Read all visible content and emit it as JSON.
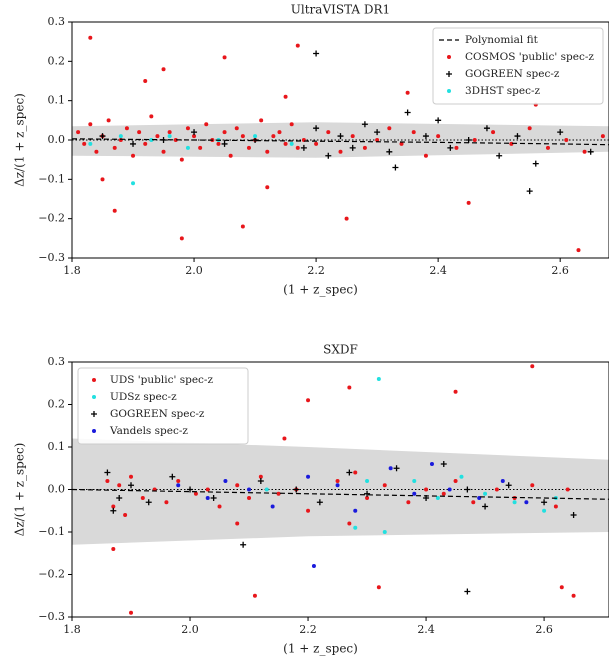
{
  "chart_data": [
    {
      "type": "scatter",
      "title": "UltraVISTA DR1",
      "x_label": "(1 + z_spec)",
      "y_label": "Δz/(1 + z_spec)",
      "xlim": [
        1.8,
        2.68
      ],
      "ylim": [
        -0.3,
        0.3
      ],
      "xticks": [
        1.8,
        {
          "value": 2.0,
          "label": "2.0"
        },
        2.2,
        2.4,
        2.6
      ],
      "yticks": [
        {
          "value": -0.3,
          "label": "−0.3"
        },
        {
          "value": -0.2,
          "label": "−0.2"
        },
        {
          "value": -0.1,
          "label": "−0.1"
        },
        {
          "value": 0,
          "label": "0.0"
        },
        0.1,
        0.2,
        0.3
      ],
      "legend": "upper right",
      "band": {
        "color": "#d9d9d9",
        "x": [
          1.8,
          2.2,
          2.68
        ],
        "upper": [
          0.035,
          0.045,
          0.035
        ],
        "lower": [
          -0.04,
          -0.045,
          -0.03
        ]
      },
      "fit": {
        "name": "Polynomial fit",
        "color": "#000000",
        "x": [
          1.8,
          2.0,
          2.2,
          2.4,
          2.6,
          2.68
        ],
        "y": [
          0.003,
          0,
          -0.003,
          -0.006,
          -0.01,
          -0.012
        ]
      },
      "series": [
        {
          "name": "COSMOS 'public' spec-z",
          "color": "#e8161b",
          "marker": "o",
          "x": [
            1.81,
            1.82,
            1.83,
            1.84,
            1.85,
            1.86,
            1.87,
            1.88,
            1.89,
            1.9,
            1.91,
            1.92,
            1.93,
            1.94,
            1.95,
            1.96,
            1.97,
            1.98,
            1.99,
            2.0,
            2.01,
            2.02,
            2.03,
            2.04,
            2.05,
            2.06,
            2.07,
            2.08,
            2.09,
            2.1,
            2.11,
            2.12,
            2.13,
            2.14,
            2.15,
            2.16,
            2.17,
            2.18,
            2.2,
            2.22,
            2.24,
            2.26,
            2.28,
            2.3,
            2.32,
            2.34,
            2.36,
            2.38,
            2.4,
            2.43,
            2.46,
            2.49,
            2.52,
            2.55,
            2.58,
            2.61,
            2.64,
            2.67,
            1.83,
            1.87,
            1.92,
            1.98,
            2.05,
            2.12,
            2.17,
            2.25,
            2.35,
            2.45,
            2.56,
            2.63,
            1.85,
            1.95,
            2.08,
            2.15
          ],
          "y": [
            0.02,
            -0.01,
            0.04,
            -0.03,
            0.01,
            0.05,
            -0.02,
            0,
            0.03,
            -0.04,
            0.02,
            -0.01,
            0.06,
            0.01,
            -0.03,
            0.02,
            0,
            -0.05,
            0.03,
            0.01,
            -0.02,
            0.04,
            0,
            -0.01,
            0.02,
            -0.04,
            0.03,
            0.01,
            -0.02,
            0,
            0.05,
            -0.03,
            0.01,
            0.02,
            -0.01,
            0.04,
            -0.02,
            0,
            -0.01,
            0.02,
            -0.03,
            0.01,
            -0.02,
            0,
            0.03,
            -0.01,
            0.02,
            -0.04,
            0.01,
            -0.02,
            0,
            0.02,
            -0.01,
            0.03,
            -0.02,
            0,
            -0.03,
            0.01,
            0.26,
            -0.18,
            0.15,
            -0.25,
            0.21,
            -0.12,
            0.24,
            -0.2,
            0.12,
            -0.16,
            0.09,
            -0.28,
            -0.1,
            0.18,
            -0.22,
            0.11
          ]
        },
        {
          "name": "GOGREEN spec-z",
          "color": "#000000",
          "marker": "+",
          "x": [
            1.85,
            1.9,
            1.95,
            2.0,
            2.05,
            2.1,
            2.18,
            2.2,
            2.22,
            2.24,
            2.26,
            2.28,
            2.3,
            2.32,
            2.35,
            2.38,
            2.42,
            2.45,
            2.48,
            2.5,
            2.53,
            2.56,
            2.6,
            2.65,
            2.2,
            2.33,
            2.55,
            2.4
          ],
          "y": [
            0.01,
            -0.01,
            0,
            0.02,
            -0.01,
            0,
            -0.02,
            0.03,
            -0.04,
            0.01,
            -0.02,
            0.04,
            0.02,
            -0.03,
            0.07,
            0.01,
            -0.02,
            0,
            0.03,
            -0.04,
            0.01,
            -0.06,
            0.02,
            -0.03,
            0.22,
            -0.07,
            -0.13,
            0.05
          ]
        },
        {
          "name": "3DHST spec-z",
          "color": "#22e0e0",
          "marker": "o",
          "x": [
            1.83,
            1.88,
            1.9,
            1.93,
            1.96,
            1.99,
            2.04,
            2.1,
            2.16
          ],
          "y": [
            -0.01,
            0.01,
            -0.11,
            0,
            0.01,
            -0.02,
            0,
            0.01,
            -0.01
          ]
        }
      ]
    },
    {
      "type": "scatter",
      "title": "SXDF",
      "x_label": "(1 + z_spec)",
      "y_label": "Δz/(1 + z_spec)",
      "xlim": [
        1.8,
        2.71
      ],
      "ylim": [
        -0.3,
        0.3
      ],
      "xticks": [
        1.8,
        {
          "value": 2.0,
          "label": "2.0"
        },
        2.2,
        2.4,
        2.6
      ],
      "yticks": [
        {
          "value": -0.3,
          "label": "−0.3"
        },
        {
          "value": -0.2,
          "label": "−0.2"
        },
        {
          "value": -0.1,
          "label": "−0.1"
        },
        {
          "value": 0,
          "label": "0.0"
        },
        0.1,
        0.2,
        0.3
      ],
      "legend": "upper left",
      "band": {
        "color": "#d9d9d9",
        "x": [
          1.8,
          2.2,
          2.71
        ],
        "upper": [
          0.12,
          0.1,
          0.07
        ],
        "lower": [
          -0.13,
          -0.11,
          -0.1
        ]
      },
      "fit": {
        "color": "#000000",
        "x": [
          1.8,
          2.0,
          2.2,
          2.4,
          2.6,
          2.71
        ],
        "y": [
          0,
          -0.005,
          -0.01,
          -0.015,
          -0.02,
          -0.023
        ]
      },
      "series": [
        {
          "name": "UDS 'public' spec-z",
          "color": "#e8161b",
          "marker": "o",
          "x": [
            1.86,
            1.87,
            1.88,
            1.89,
            1.9,
            1.92,
            1.94,
            1.96,
            1.98,
            2.01,
            2.03,
            2.05,
            2.08,
            2.1,
            2.12,
            2.15,
            2.18,
            2.2,
            2.25,
            2.27,
            2.28,
            2.3,
            2.33,
            2.37,
            2.4,
            2.43,
            2.45,
            2.48,
            2.52,
            2.55,
            2.58,
            2.62,
            2.64,
            1.9,
            1.87,
            2.08,
            2.11,
            2.2,
            2.27,
            2.32,
            2.45,
            2.58,
            2.63,
            2.65,
            2.16
          ],
          "y": [
            0.02,
            -0.04,
            0.01,
            -0.06,
            0.03,
            -0.02,
            0,
            -0.03,
            0.02,
            -0.01,
            0,
            -0.04,
            0.01,
            -0.02,
            0.03,
            -0.01,
            0,
            -0.05,
            0.02,
            -0.08,
            0.04,
            -0.02,
            0.01,
            -0.03,
            0,
            -0.01,
            0.02,
            -0.03,
            0,
            -0.02,
            0.01,
            -0.04,
            0,
            -0.29,
            -0.14,
            -0.08,
            -0.25,
            0.21,
            0.24,
            -0.23,
            0.23,
            0.29,
            -0.23,
            -0.25,
            0.12
          ]
        },
        {
          "name": "UDSz spec-z",
          "color": "#22e0e0",
          "marker": "o",
          "x": [
            2.13,
            2.28,
            2.32,
            2.33,
            2.38,
            2.42,
            2.46,
            2.5,
            2.55,
            2.6,
            2.62,
            2.3
          ],
          "y": [
            0,
            -0.09,
            0.26,
            -0.1,
            0.02,
            -0.02,
            0.03,
            -0.01,
            -0.03,
            -0.05,
            -0.02,
            0.02
          ]
        },
        {
          "name": "GOGREEN spec-z",
          "color": "#000000",
          "marker": "+",
          "x": [
            1.86,
            1.88,
            1.9,
            1.93,
            1.97,
            2.0,
            2.04,
            2.09,
            2.12,
            2.18,
            2.22,
            2.27,
            2.3,
            2.35,
            2.4,
            2.43,
            2.47,
            2.5,
            2.54,
            2.6,
            2.65,
            2.47,
            1.87
          ],
          "y": [
            0.04,
            -0.02,
            0.01,
            -0.03,
            0.03,
            0,
            -0.02,
            -0.13,
            0.02,
            0,
            -0.03,
            0.04,
            -0.01,
            0.05,
            -0.02,
            0.06,
            0,
            -0.04,
            0.01,
            -0.03,
            -0.06,
            -0.24,
            -0.05
          ]
        },
        {
          "name": "Vandels spec-z",
          "color": "#1a1adc",
          "marker": "o",
          "x": [
            1.98,
            2.03,
            2.06,
            2.1,
            2.14,
            2.2,
            2.21,
            2.25,
            2.28,
            2.34,
            2.38,
            2.41,
            2.44,
            2.49,
            2.53,
            2.57
          ],
          "y": [
            0.01,
            -0.02,
            0.02,
            0,
            -0.04,
            0.03,
            -0.18,
            0.01,
            -0.05,
            0.05,
            -0.01,
            0.06,
            0,
            -0.02,
            0.02,
            -0.03
          ]
        }
      ]
    }
  ]
}
